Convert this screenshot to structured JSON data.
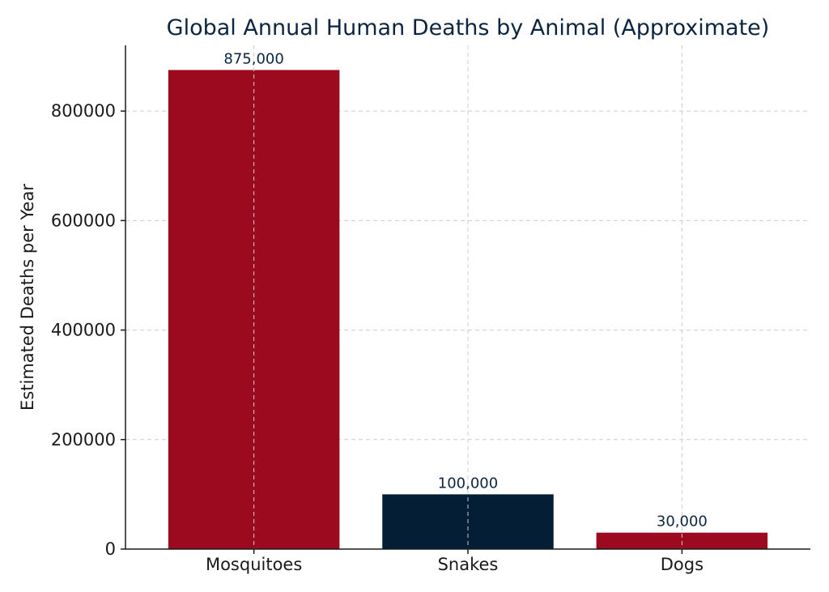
{
  "chart_data": {
    "type": "bar",
    "title": "Global Annual Human Deaths by Animal (Approximate)",
    "xlabel": "",
    "ylabel": "Estimated Deaths per Year",
    "categories": [
      "Mosquitoes",
      "Snakes",
      "Dogs"
    ],
    "values": [
      875000,
      100000,
      30000
    ],
    "data_labels": [
      "875,000",
      "100,000",
      "30,000"
    ],
    "bar_colors": [
      "#9b0a1e",
      "#041e36",
      "#9b0a1e"
    ],
    "ylim": [
      0,
      920000
    ],
    "yticks": [
      0,
      200000,
      400000,
      600000,
      800000
    ],
    "ytick_labels": [
      "0",
      "200000",
      "400000",
      "600000",
      "800000"
    ],
    "grid": true
  }
}
